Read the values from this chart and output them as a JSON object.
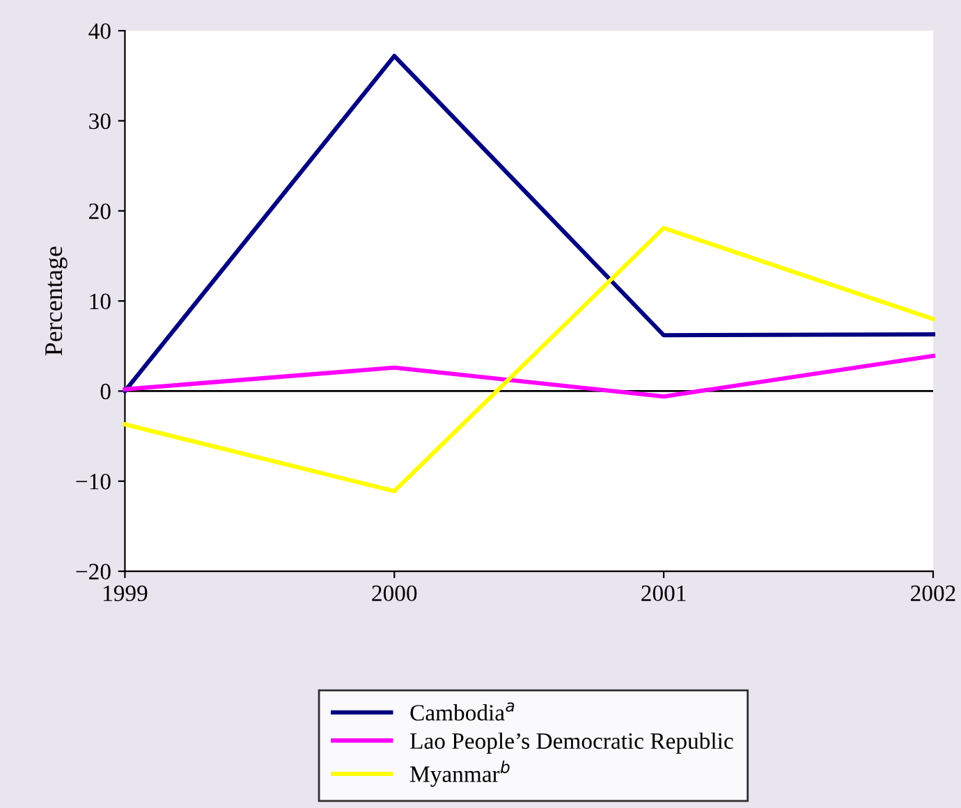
{
  "chart_data": {
    "type": "line",
    "ylabel": "Percentage",
    "x": [
      1999,
      2000,
      2001,
      2002
    ],
    "xlim": [
      1999,
      2002
    ],
    "xticks": [
      1999,
      2000,
      2001,
      2002
    ],
    "ylim": [
      -20,
      40
    ],
    "yticks": [
      -20,
      -10,
      0,
      10,
      20,
      30,
      40
    ],
    "series": [
      {
        "name": "Cambodia$^{a}$",
        "color": "#000080",
        "values": [
          0,
          37.2,
          6.2,
          6.3
        ]
      },
      {
        "name": "Lao People’s Democratic Republic",
        "color": "#ff00ff",
        "values": [
          0.2,
          2.6,
          -0.6,
          3.9
        ]
      },
      {
        "name": "Myanmar$^{b}$",
        "color": "#ffff00",
        "values": [
          -3.7,
          -11.1,
          18.1,
          8.0
        ]
      }
    ],
    "ref_lines": [
      {
        "axis": "y",
        "value": 0,
        "color": "#000000"
      }
    ],
    "grid": false,
    "legend": "bottom",
    "marker": "none",
    "line_style": "solid"
  }
}
